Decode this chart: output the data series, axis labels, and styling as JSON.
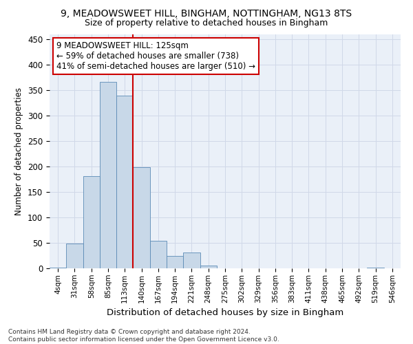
{
  "title1": "9, MEADOWSWEET HILL, BINGHAM, NOTTINGHAM, NG13 8TS",
  "title2": "Size of property relative to detached houses in Bingham",
  "xlabel": "Distribution of detached houses by size in Bingham",
  "ylabel": "Number of detached properties",
  "bar_values": [
    2,
    49,
    181,
    367,
    339,
    199,
    54,
    25,
    31,
    5,
    0,
    0,
    0,
    0,
    0,
    0,
    0,
    0,
    0,
    2,
    0
  ],
  "bin_labels": [
    "4sqm",
    "31sqm",
    "58sqm",
    "85sqm",
    "113sqm",
    "140sqm",
    "167sqm",
    "194sqm",
    "221sqm",
    "248sqm",
    "275sqm",
    "302sqm",
    "329sqm",
    "356sqm",
    "383sqm",
    "411sqm",
    "438sqm",
    "465sqm",
    "492sqm",
    "519sqm",
    "546sqm"
  ],
  "bar_color": "#c8d8e8",
  "bar_edge_color": "#5a8ab5",
  "grid_color": "#d0d8e8",
  "bg_color": "#eaf0f8",
  "vline_color": "#cc0000",
  "vline_pos": 4.5,
  "annotation_text": "9 MEADOWSWEET HILL: 125sqm\n← 59% of detached houses are smaller (738)\n41% of semi-detached houses are larger (510) →",
  "annotation_box_color": "#ffffff",
  "annotation_box_edge": "#cc0000",
  "ylim": [
    0,
    460
  ],
  "yticks": [
    0,
    50,
    100,
    150,
    200,
    250,
    300,
    350,
    400,
    450
  ],
  "footnote": "Contains HM Land Registry data © Crown copyright and database right 2024.\nContains public sector information licensed under the Open Government Licence v3.0."
}
